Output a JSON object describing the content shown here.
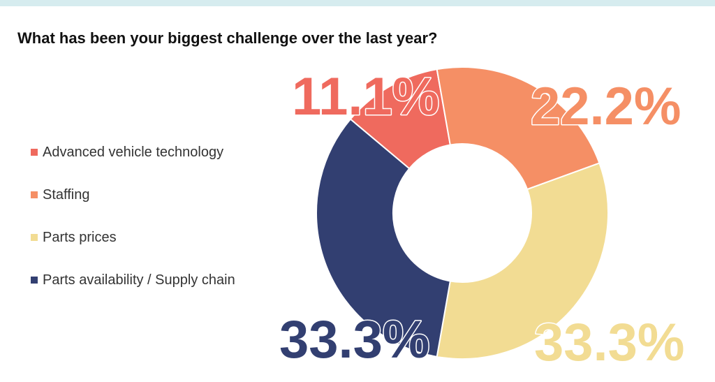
{
  "chart_data": {
    "type": "pie",
    "title": "What has been your biggest challenge over the last year?",
    "categories": [
      "Advanced vehicle technology",
      "Staffing",
      "Parts prices",
      "Parts availability / Supply chain"
    ],
    "values": [
      11.1,
      22.2,
      33.3,
      33.3
    ],
    "value_labels": [
      "11.1%",
      "22.2%",
      "33.3%",
      "33.3%"
    ],
    "colors": [
      "#ef6a5e",
      "#f58f65",
      "#f2dc93",
      "#323f71"
    ],
    "donut": true,
    "legend_position": "left"
  }
}
